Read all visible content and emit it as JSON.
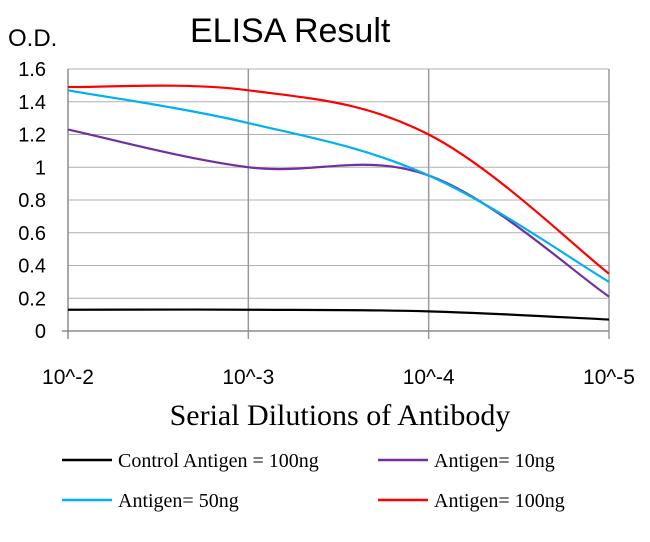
{
  "chart_data": {
    "type": "line",
    "title": "ELISA Result",
    "ylabel": "O.D.",
    "xlabel": "Serial Dilutions of Antibody",
    "categories": [
      "10^-2",
      "10^-3",
      "10^-4",
      "10^-5"
    ],
    "ylim": [
      0,
      1.6
    ],
    "yticks": [
      "0",
      "0.2",
      "0.4",
      "0.6",
      "0.8",
      "1",
      "1.2",
      "1.4",
      "1.6"
    ],
    "grid": true,
    "legend_position": "bottom",
    "series": [
      {
        "name": "Control Antigen = 100ng",
        "color": "#000000",
        "values": [
          0.13,
          0.13,
          0.12,
          0.07
        ]
      },
      {
        "name": "Antigen= 10ng",
        "color": "#7030a0",
        "values": [
          1.23,
          1.0,
          0.95,
          0.21
        ]
      },
      {
        "name": "Antigen= 50ng",
        "color": "#00b0f0",
        "values": [
          1.47,
          1.27,
          0.95,
          0.3
        ]
      },
      {
        "name": "Antigen= 100ng",
        "color": "#ff0000",
        "values": [
          1.49,
          1.47,
          1.2,
          0.35
        ]
      }
    ]
  }
}
